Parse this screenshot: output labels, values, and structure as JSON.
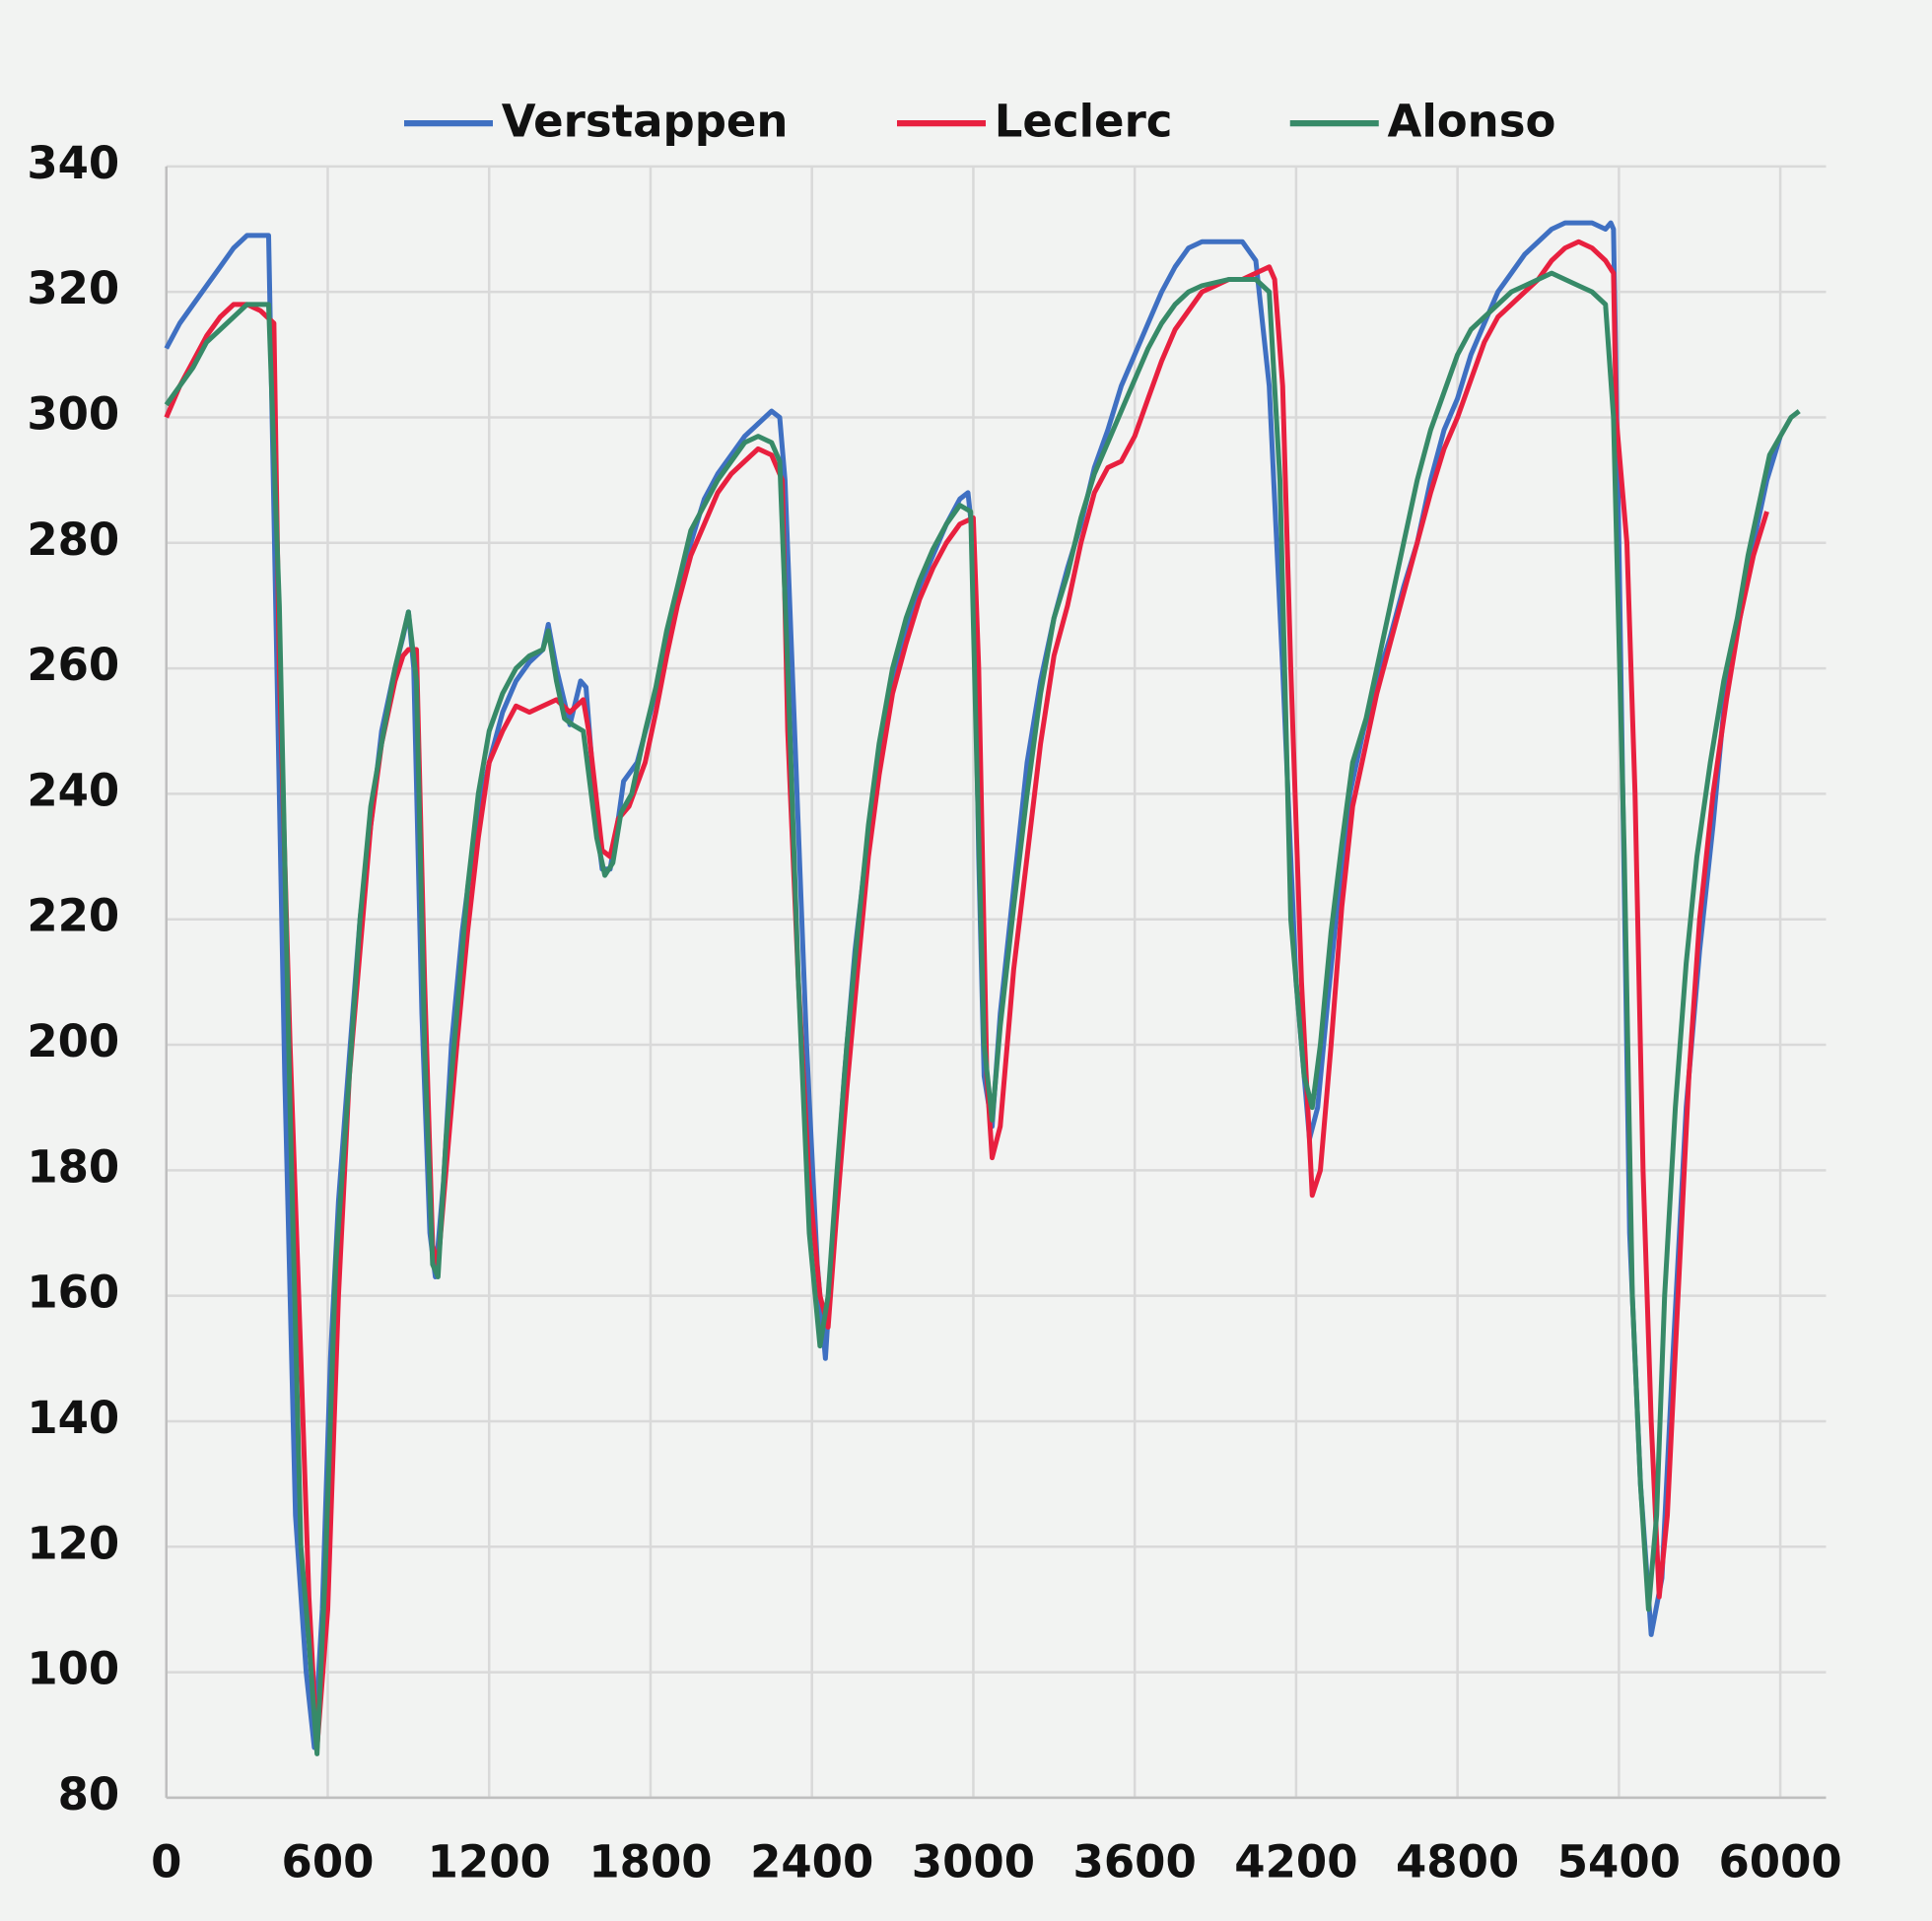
{
  "chart_data": {
    "type": "line",
    "xlim": [
      0,
      6170
    ],
    "ylim": [
      80,
      340
    ],
    "xticks": [
      0,
      600,
      1200,
      1800,
      2400,
      3000,
      3600,
      4200,
      4800,
      5400,
      6000
    ],
    "yticks": [
      80,
      100,
      120,
      140,
      160,
      180,
      200,
      220,
      240,
      260,
      280,
      300,
      320,
      340
    ],
    "grid": true,
    "legend": "top",
    "series": [
      {
        "name": "Verstappen",
        "color": "#3f70c2",
        "x": [
          0,
          50,
          100,
          150,
          200,
          250,
          300,
          380,
          400,
          440,
          480,
          520,
          550,
          580,
          610,
          640,
          680,
          720,
          760,
          800,
          850,
          880,
          900,
          920,
          950,
          980,
          1000,
          1030,
          1060,
          1100,
          1150,
          1200,
          1250,
          1300,
          1350,
          1400,
          1420,
          1450,
          1500,
          1540,
          1560,
          1600,
          1620,
          1650,
          1680,
          1700,
          1750,
          1800,
          1850,
          1900,
          1950,
          2000,
          2050,
          2100,
          2150,
          2200,
          2250,
          2280,
          2300,
          2340,
          2380,
          2420,
          2450,
          2480,
          2520,
          2560,
          2600,
          2650,
          2700,
          2750,
          2800,
          2850,
          2900,
          2950,
          2980,
          3000,
          3020,
          3040,
          3070,
          3100,
          3150,
          3200,
          3250,
          3300,
          3350,
          3400,
          3450,
          3500,
          3550,
          3600,
          3650,
          3700,
          3750,
          3800,
          3850,
          4000,
          4050,
          4100,
          4150,
          4200,
          4250,
          4280,
          4320,
          4360,
          4400,
          4450,
          4500,
          4550,
          4600,
          4650,
          4700,
          4750,
          4800,
          4850,
          4900,
          4950,
          5000,
          5050,
          5100,
          5150,
          5200,
          5300,
          5350,
          5370,
          5380,
          5400,
          5440,
          5480,
          5520,
          5560,
          5600,
          5650,
          5700,
          5750,
          5800,
          5850,
          5900,
          5950,
          6000
        ],
        "values": [
          311,
          315,
          318,
          321,
          324,
          327,
          329,
          329,
          285,
          195,
          125,
          100,
          88,
          110,
          150,
          175,
          198,
          220,
          235,
          250,
          260,
          265,
          269,
          260,
          205,
          170,
          163,
          178,
          200,
          218,
          235,
          245,
          253,
          258,
          261,
          263,
          267,
          260,
          251,
          258,
          257,
          235,
          228,
          228,
          236,
          242,
          245,
          253,
          262,
          271,
          280,
          287,
          291,
          294,
          297,
          299,
          301,
          300,
          290,
          245,
          200,
          165,
          150,
          170,
          195,
          215,
          230,
          245,
          258,
          266,
          273,
          278,
          283,
          287,
          288,
          280,
          230,
          195,
          187,
          205,
          225,
          245,
          258,
          268,
          276,
          283,
          292,
          298,
          305,
          310,
          315,
          320,
          324,
          327,
          328,
          328,
          325,
          305,
          260,
          210,
          185,
          190,
          208,
          225,
          240,
          250,
          258,
          265,
          273,
          280,
          290,
          298,
          303,
          310,
          315,
          320,
          323,
          326,
          328,
          330,
          331,
          331,
          330,
          331,
          330,
          280,
          170,
          130,
          106,
          115,
          150,
          190,
          215,
          235,
          258,
          268,
          280,
          290,
          297
        ]
      },
      {
        "name": "Leclerc",
        "color": "#e8203f",
        "x": [
          0,
          50,
          100,
          150,
          200,
          250,
          300,
          350,
          400,
          420,
          460,
          500,
          530,
          560,
          600,
          640,
          680,
          720,
          760,
          800,
          850,
          880,
          900,
          930,
          960,
          990,
          1010,
          1040,
          1080,
          1120,
          1160,
          1200,
          1250,
          1300,
          1350,
          1400,
          1450,
          1500,
          1550,
          1570,
          1620,
          1650,
          1680,
          1720,
          1780,
          1820,
          1860,
          1900,
          1950,
          2000,
          2050,
          2100,
          2150,
          2200,
          2250,
          2290,
          2310,
          2350,
          2390,
          2430,
          2460,
          2490,
          2530,
          2570,
          2610,
          2650,
          2700,
          2750,
          2800,
          2850,
          2900,
          2950,
          3000,
          3020,
          3050,
          3070,
          3100,
          3150,
          3200,
          3250,
          3300,
          3350,
          3400,
          3450,
          3500,
          3550,
          3600,
          3650,
          3700,
          3750,
          3800,
          3850,
          3900,
          3950,
          4000,
          4050,
          4100,
          4120,
          4150,
          4180,
          4220,
          4260,
          4290,
          4330,
          4370,
          4410,
          4460,
          4500,
          4550,
          4600,
          4650,
          4700,
          4750,
          4800,
          4850,
          4900,
          4950,
          5000,
          5050,
          5100,
          5150,
          5200,
          5250,
          5300,
          5350,
          5380,
          5390,
          5430,
          5460,
          5490,
          5520,
          5550,
          5580,
          5620,
          5660,
          5700,
          5750,
          5800,
          5850,
          5900,
          5950
        ],
        "values": [
          300,
          305,
          309,
          313,
          316,
          318,
          318,
          317,
          315,
          260,
          200,
          150,
          112,
          88,
          110,
          160,
          195,
          215,
          235,
          248,
          258,
          262,
          263,
          263,
          210,
          168,
          165,
          180,
          200,
          218,
          233,
          245,
          250,
          254,
          253,
          254,
          255,
          253,
          255,
          250,
          231,
          230,
          236,
          238,
          245,
          253,
          262,
          270,
          278,
          283,
          288,
          291,
          293,
          295,
          294,
          290,
          250,
          210,
          178,
          160,
          155,
          172,
          193,
          212,
          230,
          243,
          256,
          264,
          271,
          276,
          280,
          283,
          284,
          260,
          195,
          182,
          187,
          212,
          230,
          248,
          262,
          270,
          280,
          288,
          292,
          293,
          297,
          303,
          309,
          314,
          317,
          320,
          321,
          322,
          322,
          323,
          324,
          322,
          305,
          260,
          210,
          176,
          180,
          200,
          222,
          238,
          248,
          256,
          264,
          272,
          280,
          288,
          295,
          300,
          306,
          312,
          316,
          318,
          320,
          322,
          325,
          327,
          328,
          327,
          325,
          323,
          300,
          280,
          240,
          180,
          140,
          112,
          125,
          160,
          195,
          220,
          240,
          255,
          268,
          278,
          285
        ]
      },
      {
        "name": "Alonso",
        "color": "#378a68",
        "x": [
          0,
          50,
          100,
          150,
          200,
          250,
          300,
          350,
          380,
          420,
          460,
          500,
          530,
          560,
          590,
          630,
          680,
          720,
          760,
          800,
          850,
          900,
          930,
          960,
          990,
          1010,
          1040,
          1080,
          1120,
          1160,
          1200,
          1250,
          1300,
          1350,
          1400,
          1420,
          1450,
          1480,
          1510,
          1550,
          1600,
          1630,
          1660,
          1690,
          1730,
          1780,
          1820,
          1860,
          1900,
          1950,
          2000,
          2050,
          2100,
          2150,
          2200,
          2250,
          2280,
          2310,
          2350,
          2390,
          2430,
          2460,
          2490,
          2530,
          2570,
          2610,
          2650,
          2700,
          2750,
          2800,
          2850,
          2900,
          2950,
          2990,
          3010,
          3040,
          3070,
          3100,
          3150,
          3200,
          3250,
          3300,
          3350,
          3400,
          3450,
          3500,
          3550,
          3600,
          3650,
          3700,
          3750,
          3800,
          3850,
          3950,
          4050,
          4100,
          4140,
          4180,
          4230,
          4260,
          4290,
          4330,
          4370,
          4410,
          4460,
          4500,
          4550,
          4600,
          4650,
          4700,
          4750,
          4800,
          4850,
          4900,
          4950,
          5000,
          5050,
          5100,
          5150,
          5200,
          5250,
          5300,
          5350,
          5380,
          5420,
          5450,
          5480,
          5510,
          5540,
          5570,
          5610,
          5650,
          5690,
          5740,
          5790,
          5840,
          5880,
          5920,
          5960,
          6000,
          6040,
          6070
        ],
        "values": [
          302,
          305,
          308,
          312,
          314,
          316,
          318,
          318,
          318,
          270,
          190,
          120,
          105,
          87,
          115,
          165,
          195,
          220,
          238,
          248,
          260,
          269,
          258,
          200,
          165,
          163,
          185,
          205,
          225,
          240,
          250,
          256,
          260,
          262,
          263,
          266,
          258,
          252,
          251,
          250,
          233,
          227,
          229,
          237,
          240,
          250,
          257,
          266,
          273,
          282,
          286,
          290,
          293,
          296,
          297,
          296,
          293,
          260,
          210,
          170,
          152,
          160,
          178,
          200,
          218,
          235,
          248,
          260,
          268,
          274,
          279,
          283,
          286,
          285,
          250,
          200,
          188,
          203,
          222,
          240,
          256,
          268,
          275,
          284,
          291,
          296,
          301,
          306,
          311,
          315,
          318,
          320,
          321,
          322,
          322,
          320,
          290,
          220,
          195,
          190,
          200,
          218,
          232,
          245,
          252,
          260,
          270,
          280,
          290,
          298,
          304,
          310,
          314,
          316,
          318,
          320,
          321,
          322,
          323,
          322,
          321,
          320,
          318,
          300,
          230,
          160,
          130,
          110,
          125,
          160,
          190,
          213,
          230,
          245,
          258,
          268,
          278,
          286,
          294,
          297,
          300,
          301
        ]
      }
    ]
  }
}
